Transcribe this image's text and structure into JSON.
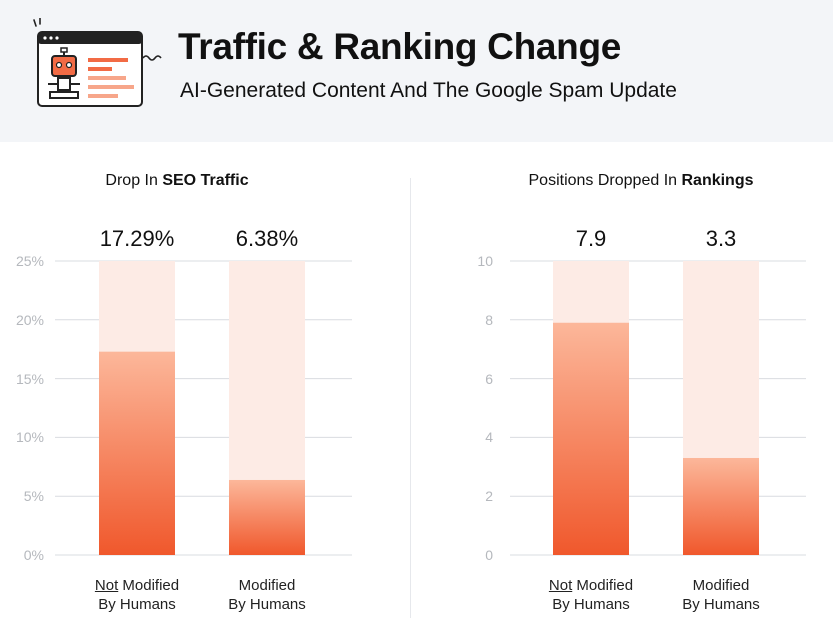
{
  "header": {
    "title": "Traffic & Ranking Change",
    "subtitle": "AI-Generated Content And The Google Spam Update"
  },
  "colors": {
    "bar_top": "#fcb79a",
    "bar_bottom": "#f0582c",
    "bar_background": "#fdebe5",
    "gridline": "#d9dce0",
    "tick_text": "#b5b8bd",
    "header_bg": "#f3f5f8"
  },
  "chart_data": [
    {
      "type": "bar",
      "title_prefix": "Drop In ",
      "title_bold": "SEO Traffic",
      "categories": [
        {
          "not": "Not",
          "line1_rest": " Modified",
          "line2": "By Humans"
        },
        {
          "not": "",
          "line1_rest": "Modified",
          "line2": "By Humans"
        }
      ],
      "values": [
        17.29,
        6.38
      ],
      "value_labels": [
        "17.29%",
        "6.38%"
      ],
      "ylim": [
        0,
        25
      ],
      "ticks": [
        0,
        5,
        10,
        15,
        20,
        25
      ],
      "tick_labels": [
        "0%",
        "5%",
        "10%",
        "15%",
        "20%",
        "25%"
      ]
    },
    {
      "type": "bar",
      "title_prefix": "Positions Dropped In ",
      "title_bold": "Rankings",
      "categories": [
        {
          "not": "Not",
          "line1_rest": " Modified",
          "line2": "By Humans"
        },
        {
          "not": "",
          "line1_rest": "Modified",
          "line2": "By Humans"
        }
      ],
      "values": [
        7.9,
        3.3
      ],
      "value_labels": [
        "7.9",
        "3.3"
      ],
      "ylim": [
        0,
        10
      ],
      "ticks": [
        0,
        2,
        4,
        6,
        8,
        10
      ],
      "tick_labels": [
        "0",
        "2",
        "4",
        "6",
        "8",
        "10"
      ]
    }
  ]
}
